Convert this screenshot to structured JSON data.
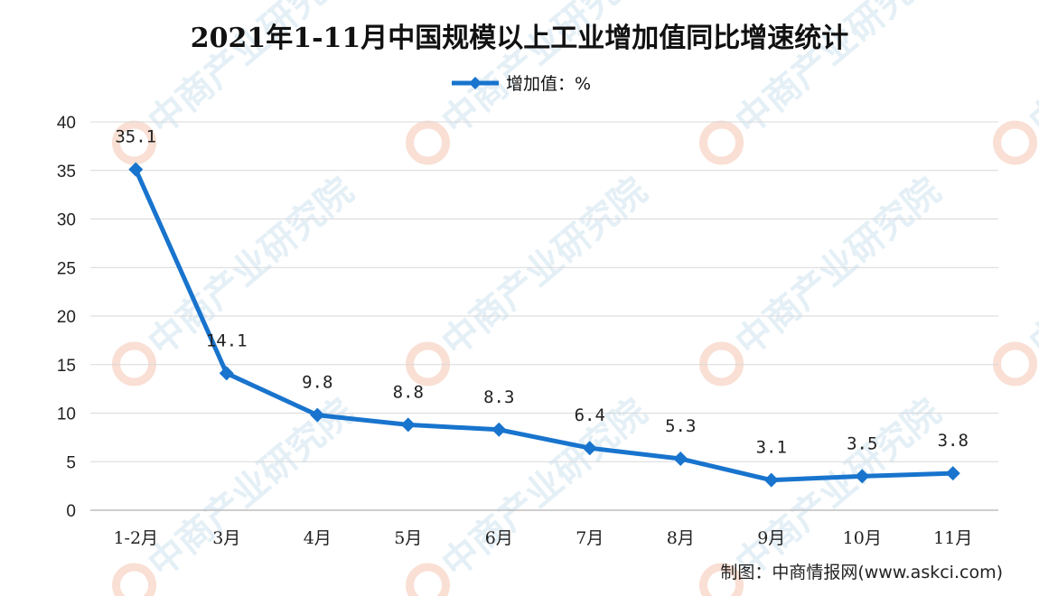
{
  "chart_data": {
    "type": "line",
    "title": "2021年1-11月中国规模以上工业增加值同比增速统计",
    "categories": [
      "1-2月",
      "3月",
      "4月",
      "5月",
      "6月",
      "7月",
      "8月",
      "9月",
      "10月",
      "11月"
    ],
    "series": [
      {
        "name": "增加值：%",
        "values": [
          35.1,
          14.1,
          9.8,
          8.8,
          8.3,
          6.4,
          5.3,
          3.1,
          3.5,
          3.8
        ]
      }
    ],
    "data_labels": [
      "35.1",
      "14.1",
      "9.8",
      "8.8",
      "8.3",
      "6.4",
      "5.3",
      "3.1",
      "3.5",
      "3.8"
    ],
    "yticks": [
      "0",
      "5",
      "10",
      "15",
      "20",
      "25",
      "30",
      "35",
      "40"
    ],
    "ylim": [
      0,
      40
    ],
    "grid": true,
    "legend_position": "top-center",
    "line_color": "#1874cd"
  },
  "source_note": "制图：中商情报网(www.askci.com)",
  "watermark": {
    "text": "中商产业研究院",
    "icon": "askci-logo-icon"
  }
}
